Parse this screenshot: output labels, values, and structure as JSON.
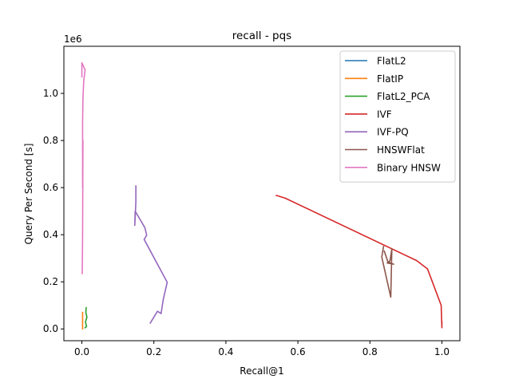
{
  "chart_data": {
    "type": "line",
    "title": "recall - pqs",
    "xlabel": "Recall@1",
    "ylabel": "Query Per Second [s]",
    "y_offset_label": "1e6",
    "xlim": [
      -0.05,
      1.05
    ],
    "ylim": [
      -0.05,
      1.2
    ],
    "xticks": [
      0.0,
      0.2,
      0.4,
      0.6,
      0.8,
      1.0
    ],
    "xtick_labels": [
      "0.0",
      "0.2",
      "0.4",
      "0.6",
      "0.8",
      "1.0"
    ],
    "yticks": [
      0.0,
      0.2,
      0.4,
      0.6,
      0.8,
      1.0
    ],
    "ytick_labels": [
      "0.0",
      "0.2",
      "0.4",
      "0.6",
      "0.8",
      "1.0"
    ],
    "y_unit_multiplier": 1000000,
    "grid": false,
    "legend_position": "top-right",
    "series": [
      {
        "name": "FlatL2",
        "color": "#1f77b4",
        "points": []
      },
      {
        "name": "FlatIP",
        "color": "#ff7f0e",
        "points": [
          [
            0.002,
            0.07
          ],
          [
            0.002,
            0.0
          ]
        ]
      },
      {
        "name": "FlatL2_PCA",
        "color": "#2ca02c",
        "points": [
          [
            0.012,
            0.09
          ],
          [
            0.011,
            0.07
          ],
          [
            0.014,
            0.05
          ],
          [
            0.01,
            0.03
          ],
          [
            0.013,
            0.01
          ],
          [
            0.009,
            0.005
          ]
        ]
      },
      {
        "name": "IVF",
        "color": "#d62728",
        "points": [
          [
            0.54,
            0.567
          ],
          [
            0.565,
            0.555
          ],
          [
            0.93,
            0.29
          ],
          [
            0.96,
            0.255
          ],
          [
            0.998,
            0.1
          ],
          [
            0.999,
            0.05
          ],
          [
            1.0,
            0.005
          ],
          [
            1.0,
            0.03
          ]
        ]
      },
      {
        "name": "IVF-PQ",
        "color": "#9467bd",
        "points": [
          [
            0.15,
            0.607
          ],
          [
            0.15,
            0.54
          ],
          [
            0.147,
            0.44
          ],
          [
            0.148,
            0.5
          ],
          [
            0.175,
            0.43
          ],
          [
            0.18,
            0.398
          ],
          [
            0.173,
            0.38
          ],
          [
            0.237,
            0.198
          ],
          [
            0.226,
            0.125
          ],
          [
            0.22,
            0.065
          ],
          [
            0.21,
            0.075
          ],
          [
            0.19,
            0.025
          ]
        ]
      },
      {
        "name": "HNSWFlat",
        "color": "#8c564b",
        "points": [
          [
            0.838,
            0.35
          ],
          [
            0.833,
            0.305
          ],
          [
            0.858,
            0.135
          ],
          [
            0.861,
            0.34
          ],
          [
            0.856,
            0.29
          ],
          [
            0.848,
            0.28
          ],
          [
            0.866,
            0.275
          ],
          [
            0.85,
            0.285
          ],
          [
            0.84,
            0.33
          ]
        ]
      },
      {
        "name": "Binary HNSW",
        "color": "#e377c2",
        "points": [
          [
            0.0,
            1.07
          ],
          [
            0.0,
            1.13
          ],
          [
            0.009,
            1.1
          ],
          [
            0.005,
            1.05
          ],
          [
            0.003,
            0.98
          ],
          [
            0.002,
            0.88
          ],
          [
            0.002,
            0.6
          ],
          [
            0.003,
            0.8
          ],
          [
            0.002,
            0.4
          ],
          [
            0.001,
            0.235
          ]
        ]
      }
    ]
  }
}
